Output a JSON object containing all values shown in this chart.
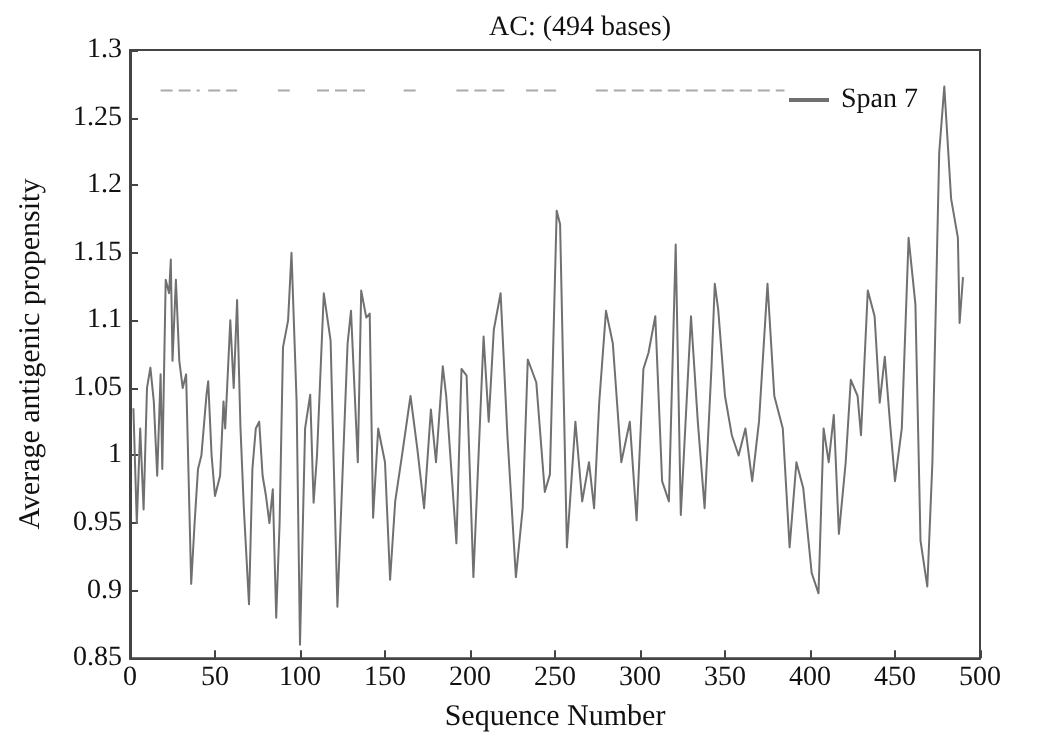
{
  "chart_data": {
    "type": "line",
    "title": "AC: (494 bases)",
    "xlabel": "Sequence Number",
    "ylabel": "Average antigenic propensity",
    "xlim": [
      0,
      500
    ],
    "xticks": [
      0,
      50,
      100,
      150,
      200,
      250,
      300,
      350,
      400,
      450,
      500
    ],
    "ylim": [
      0.85,
      1.3
    ],
    "yticks": [
      0.85,
      0.9,
      0.95,
      1,
      1.05,
      1.1,
      1.15,
      1.2,
      1.25,
      1.3
    ],
    "grid": false,
    "legend": "top right",
    "marker": "none",
    "series": [
      {
        "name": "Span 7",
        "color": "#707070",
        "line_style": "solid",
        "x": [
          2,
          4,
          6,
          8,
          10,
          12,
          14,
          16,
          18,
          19,
          21,
          23,
          24,
          25,
          27,
          29,
          31,
          33,
          36,
          38,
          40,
          42,
          45,
          46,
          48,
          50,
          53,
          55,
          56,
          59,
          61,
          63,
          65,
          67,
          70,
          72,
          74,
          76,
          78,
          80,
          82,
          84,
          86,
          88,
          90,
          93,
          95,
          98,
          100,
          103,
          106,
          108,
          110,
          114,
          118,
          122,
          128,
          130,
          134,
          136,
          139,
          141,
          143,
          146,
          150,
          153,
          156,
          160,
          165,
          169,
          173,
          177,
          180,
          184,
          186,
          192,
          195,
          198,
          202,
          208,
          211,
          214,
          218,
          222,
          227,
          231,
          234,
          239,
          244,
          247,
          251,
          253,
          257,
          262,
          266,
          270,
          273,
          276,
          280,
          284,
          289,
          294,
          298,
          302,
          305,
          309,
          313,
          317,
          321,
          324,
          330,
          334,
          338,
          342,
          344,
          346,
          350,
          354,
          358,
          362,
          366,
          370,
          375,
          379,
          384,
          388,
          392,
          396,
          401,
          405,
          408,
          411,
          414,
          417,
          421,
          424,
          428,
          430,
          434,
          438,
          441,
          444,
          447,
          450,
          454,
          458,
          462,
          465,
          469,
          472,
          476,
          479,
          483,
          487,
          488,
          490
        ],
        "values": [
          1.035,
          0.95,
          1.02,
          0.96,
          1.05,
          1.065,
          1.04,
          0.985,
          1.06,
          0.99,
          1.13,
          1.12,
          1.145,
          1.07,
          1.13,
          1.07,
          1.05,
          1.06,
          0.905,
          0.95,
          0.99,
          1.0,
          1.045,
          1.055,
          1.0,
          0.97,
          0.985,
          1.04,
          1.02,
          1.1,
          1.05,
          1.115,
          1.02,
          0.96,
          0.89,
          0.99,
          1.02,
          1.025,
          0.985,
          0.97,
          0.95,
          0.975,
          0.88,
          0.95,
          1.08,
          1.1,
          1.15,
          1.04,
          0.86,
          1.02,
          1.045,
          0.965,
          1.0,
          1.12,
          1.085,
          0.888,
          1.083,
          1.107,
          0.995,
          1.122,
          1.102,
          1.105,
          0.954,
          1.02,
          0.995,
          0.908,
          0.966,
          1.0,
          1.044,
          1.005,
          0.961,
          1.034,
          0.995,
          1.066,
          1.044,
          0.935,
          1.064,
          1.059,
          0.91,
          1.088,
          1.025,
          1.093,
          1.12,
          1.015,
          0.91,
          0.961,
          1.071,
          1.054,
          0.973,
          0.986,
          1.181,
          1.171,
          0.932,
          1.025,
          0.966,
          0.995,
          0.961,
          1.039,
          1.107,
          1.083,
          0.995,
          1.025,
          0.952,
          1.064,
          1.076,
          1.103,
          0.981,
          0.966,
          1.156,
          0.956,
          1.103,
          1.025,
          0.961,
          1.064,
          1.127,
          1.108,
          1.044,
          1.015,
          1.0,
          1.02,
          0.981,
          1.025,
          1.127,
          1.044,
          1.02,
          0.932,
          0.995,
          0.976,
          0.913,
          0.898,
          1.02,
          0.995,
          1.03,
          0.942,
          0.995,
          1.056,
          1.044,
          1.015,
          1.122,
          1.103,
          1.039,
          1.073,
          1.025,
          0.981,
          1.02,
          1.161,
          1.112,
          0.937,
          0.903,
          0.995,
          1.224,
          1.273,
          1.19,
          1.161,
          1.098,
          1.132
        ]
      },
      {
        "color": "#aaaaaa",
        "line_style": "dashed",
        "x": [
          18,
          41,
          42,
          46,
          63,
          64,
          87,
          94,
          95,
          110,
          141,
          142,
          161,
          170,
          171,
          192,
          222,
          223,
          233,
          254,
          255,
          274,
          385
        ],
        "values": [
          1.27,
          1.27,
          null,
          1.27,
          1.27,
          null,
          1.27,
          1.27,
          null,
          1.27,
          1.27,
          null,
          1.27,
          1.27,
          null,
          1.27,
          1.27,
          null,
          1.27,
          1.27,
          null,
          1.27,
          1.27
        ]
      }
    ]
  }
}
